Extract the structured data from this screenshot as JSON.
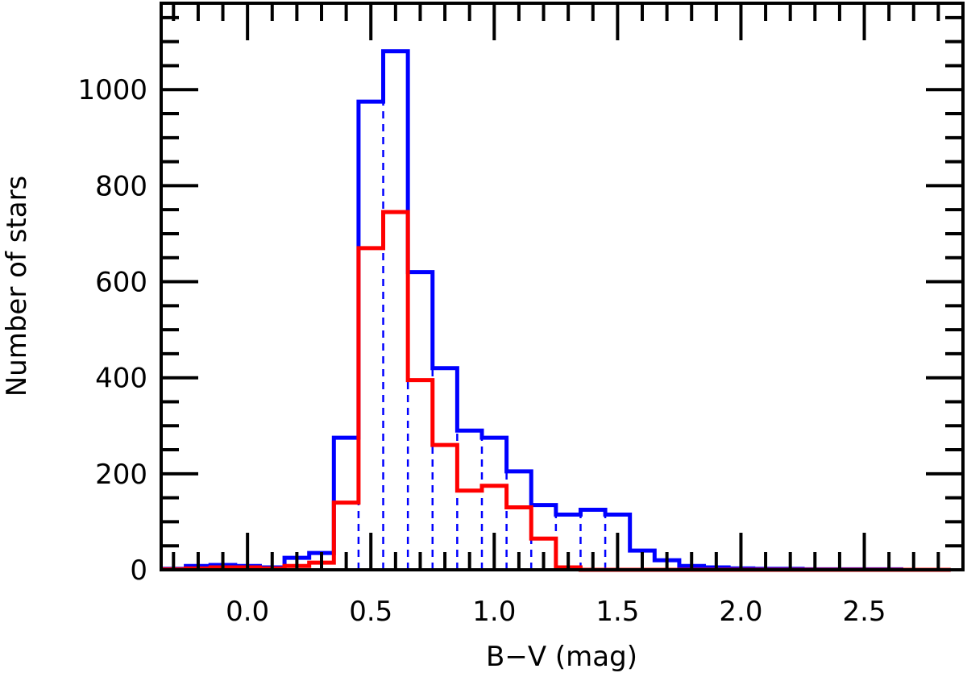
{
  "chart_data": {
    "type": "histogram",
    "xlabel": "B−V (mag)",
    "ylabel": "Number of stars",
    "xlim": [
      -0.35,
      2.9
    ],
    "ylim": [
      0,
      1180
    ],
    "x_ticks": [
      0.0,
      0.5,
      1.0,
      1.5,
      2.0,
      2.5
    ],
    "x_tick_labels": [
      "0.0",
      "0.5",
      "1.0",
      "1.5",
      "2.0",
      "2.5"
    ],
    "y_ticks": [
      0,
      200,
      400,
      600,
      800,
      1000
    ],
    "y_tick_labels": [
      "0",
      "200",
      "400",
      "600",
      "800",
      "1000"
    ],
    "bin_edges": [
      -0.35,
      -0.25,
      -0.15,
      -0.05,
      0.05,
      0.15,
      0.25,
      0.35,
      0.45,
      0.55,
      0.65,
      0.75,
      0.85,
      0.95,
      1.05,
      1.15,
      1.25,
      1.35,
      1.45,
      1.55,
      1.65,
      1.75,
      1.85,
      1.95,
      2.05,
      2.15,
      2.25,
      2.35,
      2.45,
      2.55,
      2.65,
      2.75,
      2.85
    ],
    "series": [
      {
        "color": "#0000ff",
        "values": [
          2,
          8,
          10,
          8,
          5,
          25,
          35,
          275,
          975,
          1080,
          620,
          420,
          290,
          275,
          205,
          135,
          115,
          125,
          115,
          40,
          20,
          8,
          5,
          3,
          2,
          2,
          1,
          1,
          1,
          1,
          0,
          0
        ]
      },
      {
        "color": "#ff0000",
        "values": [
          1,
          3,
          5,
          5,
          3,
          8,
          15,
          140,
          670,
          745,
          395,
          260,
          165,
          175,
          130,
          65,
          5,
          0,
          0,
          0,
          0,
          0,
          0,
          0,
          0,
          0,
          0,
          0,
          0,
          0,
          0,
          0
        ]
      }
    ],
    "dashed_lines": {
      "color": "#0000ff",
      "x": [
        0.45,
        0.55,
        0.65,
        0.75,
        0.85,
        0.95,
        1.05,
        1.15,
        1.25,
        1.35,
        1.45
      ],
      "top": [
        670,
        975,
        1080,
        620,
        420,
        290,
        275,
        205,
        135,
        115,
        125
      ]
    }
  }
}
